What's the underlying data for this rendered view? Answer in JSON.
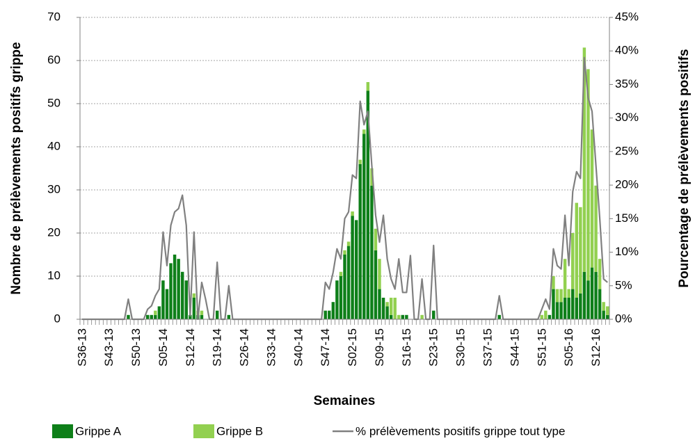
{
  "chart_data": {
    "type": "bar",
    "stacked": true,
    "xlabel": "Semaines",
    "ylabel": "Nombre de prélèvements positifs grippe",
    "y2label": "Pourcentage de prélèvements positifs",
    "ylim": [
      0,
      70
    ],
    "yticks": [
      0,
      10,
      20,
      30,
      40,
      50,
      60,
      70
    ],
    "y2lim": [
      0,
      45
    ],
    "y2ticks": [
      {
        "value": 0,
        "label": "0%"
      },
      {
        "value": 5,
        "label": "5%"
      },
      {
        "value": 10,
        "label": "10%"
      },
      {
        "value": 15,
        "label": "15%"
      },
      {
        "value": 20,
        "label": "20%"
      },
      {
        "value": 25,
        "label": "25%"
      },
      {
        "value": 30,
        "label": "30%"
      },
      {
        "value": 35,
        "label": "35%"
      },
      {
        "value": 40,
        "label": "40%"
      },
      {
        "value": 45,
        "label": "45%"
      }
    ],
    "grid": true,
    "legend": "bottom",
    "categories": [
      "S36-13",
      null,
      null,
      null,
      null,
      null,
      null,
      "S43-13",
      null,
      null,
      null,
      null,
      null,
      null,
      "S50-13",
      null,
      null,
      null,
      null,
      null,
      null,
      "S05-14",
      null,
      null,
      null,
      null,
      null,
      null,
      "S12-14",
      null,
      null,
      null,
      null,
      null,
      null,
      "S19-14",
      null,
      null,
      null,
      null,
      null,
      null,
      "S26-14",
      null,
      null,
      null,
      null,
      null,
      null,
      "S33-14",
      null,
      null,
      null,
      null,
      null,
      null,
      "S40-14",
      null,
      null,
      null,
      null,
      null,
      null,
      "S47-14",
      null,
      null,
      null,
      null,
      null,
      null,
      "S02-15",
      null,
      null,
      null,
      null,
      null,
      null,
      "S09-15",
      null,
      null,
      null,
      null,
      null,
      null,
      "S16-15",
      null,
      null,
      null,
      null,
      null,
      null,
      "S23-15",
      null,
      null,
      null,
      null,
      null,
      null,
      "S30-15",
      null,
      null,
      null,
      null,
      null,
      null,
      "S37-15",
      null,
      null,
      null,
      null,
      null,
      null,
      "S44-15",
      null,
      null,
      null,
      null,
      null,
      null,
      "S51-15",
      null,
      null,
      null,
      null,
      null,
      null,
      "S05-16",
      null,
      null,
      null,
      null,
      null,
      null,
      "S12-16",
      null,
      null,
      null
    ],
    "series": [
      {
        "name": "Grippe A",
        "type": "bar",
        "color": "#0e7f19",
        "values": [
          0,
          0,
          0,
          0,
          0,
          0,
          0,
          0,
          0,
          0,
          0,
          0,
          1,
          0,
          0,
          0,
          0,
          1,
          1,
          1,
          3,
          9,
          7,
          13,
          15,
          14,
          11,
          9,
          1,
          5,
          1,
          1,
          0,
          0,
          0,
          2,
          0,
          0,
          1,
          0,
          0,
          0,
          0,
          0,
          0,
          0,
          0,
          0,
          0,
          0,
          0,
          0,
          0,
          0,
          0,
          0,
          0,
          0,
          0,
          0,
          0,
          0,
          0,
          2,
          2,
          4,
          9,
          10,
          15,
          17,
          24,
          23,
          36,
          43,
          53,
          31,
          16,
          7,
          5,
          3,
          1,
          0,
          0,
          1,
          1,
          0,
          0,
          0,
          0,
          0,
          0,
          2,
          0,
          0,
          0,
          0,
          0,
          0,
          0,
          0,
          0,
          0,
          0,
          0,
          0,
          0,
          0,
          0,
          1,
          0,
          0,
          0,
          0,
          0,
          0,
          0,
          0,
          0,
          0,
          0,
          0,
          1,
          7,
          4,
          4,
          5,
          5,
          7,
          5,
          6,
          11,
          9,
          12,
          11,
          7,
          2,
          1
        ]
      },
      {
        "name": "Grippe B",
        "type": "bar",
        "color": "#92d050",
        "values": [
          0,
          0,
          0,
          0,
          0,
          0,
          0,
          0,
          0,
          0,
          0,
          0,
          0,
          0,
          0,
          0,
          0,
          0,
          0,
          1,
          0,
          0,
          0,
          0,
          0,
          0,
          0,
          0,
          0,
          1,
          1,
          1,
          0,
          0,
          0,
          0,
          0,
          0,
          0,
          0,
          0,
          0,
          0,
          0,
          0,
          0,
          0,
          0,
          0,
          0,
          0,
          0,
          0,
          0,
          0,
          0,
          0,
          0,
          0,
          0,
          0,
          0,
          0,
          0,
          0,
          0,
          0,
          1,
          1,
          1,
          1,
          0,
          1,
          1,
          2,
          4,
          5,
          7,
          0,
          1,
          4,
          5,
          1,
          0,
          0,
          0,
          0,
          0,
          1,
          0,
          0,
          0,
          0,
          0,
          0,
          0,
          0,
          0,
          0,
          0,
          0,
          0,
          0,
          0,
          0,
          0,
          0,
          0,
          0,
          0,
          0,
          0,
          0,
          0,
          0,
          0,
          0,
          0,
          0,
          1,
          2,
          0,
          3,
          3,
          3,
          9,
          2,
          13,
          22,
          20,
          52,
          49,
          32,
          20,
          7,
          2,
          2
        ]
      },
      {
        "name": "% prélèvements positifs grippe tout type",
        "type": "line",
        "axis": "y2",
        "color": "#808080",
        "values": [
          0,
          0,
          0,
          0,
          0,
          0,
          0,
          0,
          0,
          0,
          0,
          0,
          3,
          0,
          0,
          0,
          0,
          1.5,
          2,
          3.5,
          4.5,
          13,
          8,
          14,
          16,
          16.5,
          18.5,
          14,
          0.5,
          13,
          0,
          5.5,
          3,
          0,
          0,
          8.5,
          0,
          0,
          5,
          0,
          0,
          0,
          0,
          0,
          0,
          0,
          0,
          0,
          0,
          0,
          0,
          0,
          0,
          0,
          0,
          0,
          0,
          0,
          0,
          0,
          0,
          0,
          0,
          5.5,
          4.5,
          7,
          10.5,
          9,
          15,
          16,
          21.5,
          21,
          32.5,
          29,
          31,
          23,
          15.5,
          11.5,
          15.5,
          9,
          6,
          4.5,
          9,
          4,
          4,
          9.5,
          0,
          0,
          6,
          0,
          0,
          11,
          0,
          0,
          0,
          0,
          0,
          0,
          0,
          0,
          0,
          0,
          0,
          0,
          0,
          0,
          0,
          0,
          3.5,
          0,
          0,
          0,
          0,
          0,
          0,
          0,
          0,
          0,
          0,
          1.5,
          3,
          1.5,
          10.5,
          8,
          7.5,
          15.5,
          8,
          19,
          22,
          21,
          39,
          33,
          31,
          23,
          15,
          6,
          5.5
        ]
      }
    ]
  }
}
